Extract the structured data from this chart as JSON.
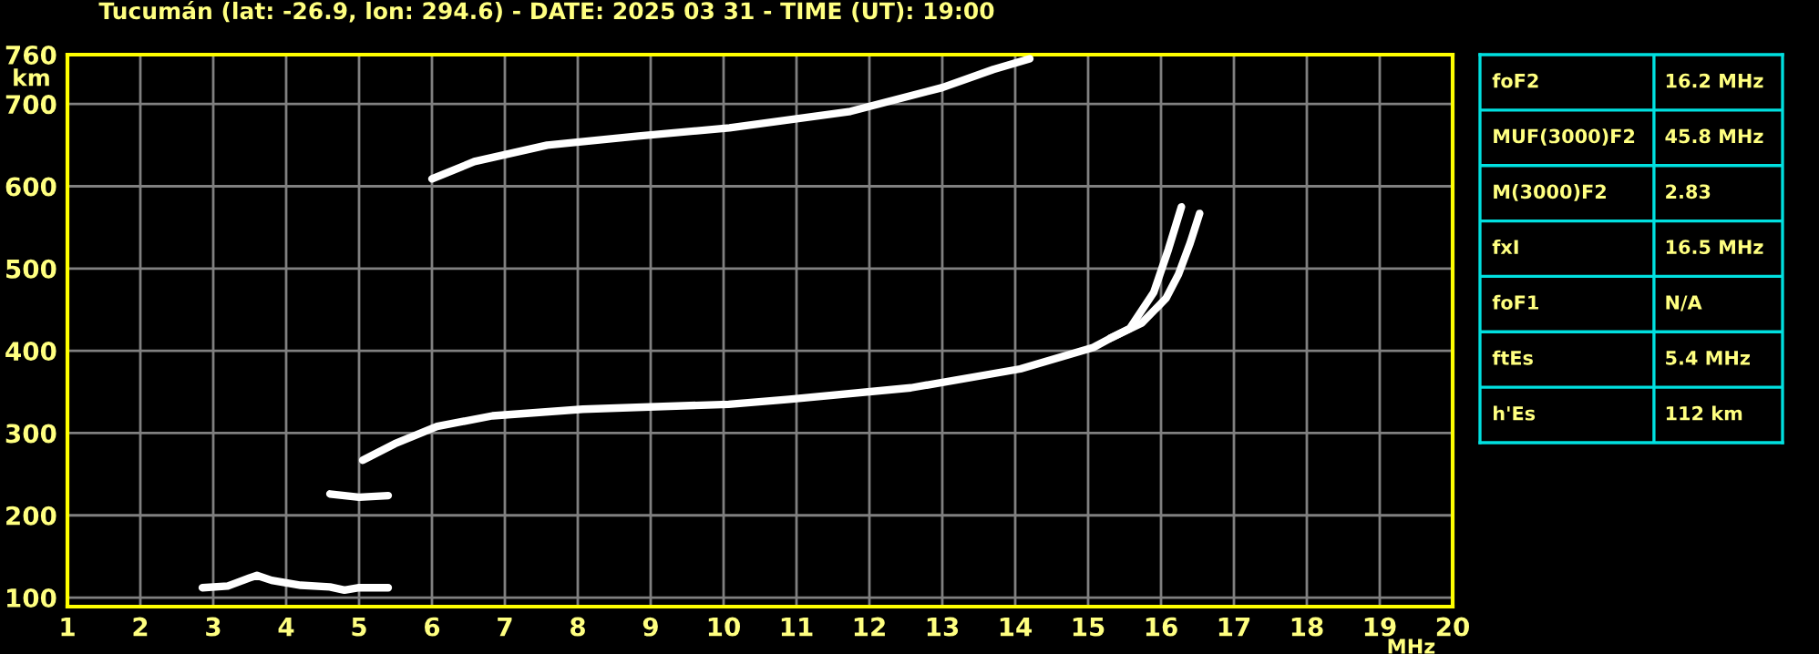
{
  "chart_data": [
    {
      "type": "line",
      "title": "Tucumán (lat: -26.9, lon: 294.6) - DATE: 2025 03 31 - TIME (UT): 19:00",
      "xlabel": "MHz",
      "ylabel": "km",
      "xlim": [
        1,
        20
      ],
      "xticks": [
        1,
        2,
        3,
        4,
        5,
        6,
        7,
        8,
        9,
        10,
        11,
        12,
        13,
        14,
        15,
        16,
        17,
        18,
        19,
        20
      ],
      "ylim": [
        89,
        760
      ],
      "yticks": [
        100,
        200,
        300,
        400,
        500,
        600,
        700,
        760
      ],
      "grid": true,
      "line_style": "solid",
      "marker": "none",
      "series": [
        {
          "color": "#ffffff",
          "x": [
            2.85,
            3.2,
            3.5,
            3.6,
            3.8,
            4.2,
            4.6,
            4.8,
            5.0,
            5.4
          ],
          "values": [
            112,
            114,
            124,
            127,
            121,
            115,
            113,
            109,
            112,
            112
          ]
        },
        {
          "color": "#ffffff",
          "x": [
            4.6,
            5.0,
            5.4
          ],
          "values": [
            226,
            222,
            224
          ]
        },
        {
          "color": "#ffffff",
          "x": [
            5.05,
            5.49,
            6.07,
            6.83,
            8.07,
            10.07,
            10.9,
            12.57,
            14.07,
            15.07,
            15.3,
            15.57,
            15.9,
            16.1,
            16.28
          ],
          "values": [
            267,
            287,
            308,
            321,
            329,
            335,
            341,
            355,
            378,
            404,
            415,
            427,
            471,
            523,
            575
          ]
        },
        {
          "color": "#ffffff",
          "x": [
            15.3,
            15.74,
            16.07,
            16.24,
            16.4,
            16.53
          ],
          "values": [
            415,
            434,
            464,
            493,
            531,
            567
          ]
        },
        {
          "color": "#ffffff",
          "x": [
            6.0,
            6.58,
            7.58,
            8.83,
            10.08,
            11.74,
            13.0,
            13.7,
            14.2
          ],
          "values": [
            609,
            630,
            650,
            661,
            671,
            691,
            720,
            742,
            755
          ]
        }
      ]
    },
    {
      "type": "other",
      "annotations": [
        "foF2",
        "16.2 MHz",
        "MUF(3000)F2",
        "45.8 MHz",
        "M(3000)F2",
        "2.83",
        "fxI",
        "16.5 MHz",
        "foF1",
        "N/A",
        "ftEs",
        "5.4 MHz",
        "h'Es",
        "112 km"
      ]
    }
  ]
}
